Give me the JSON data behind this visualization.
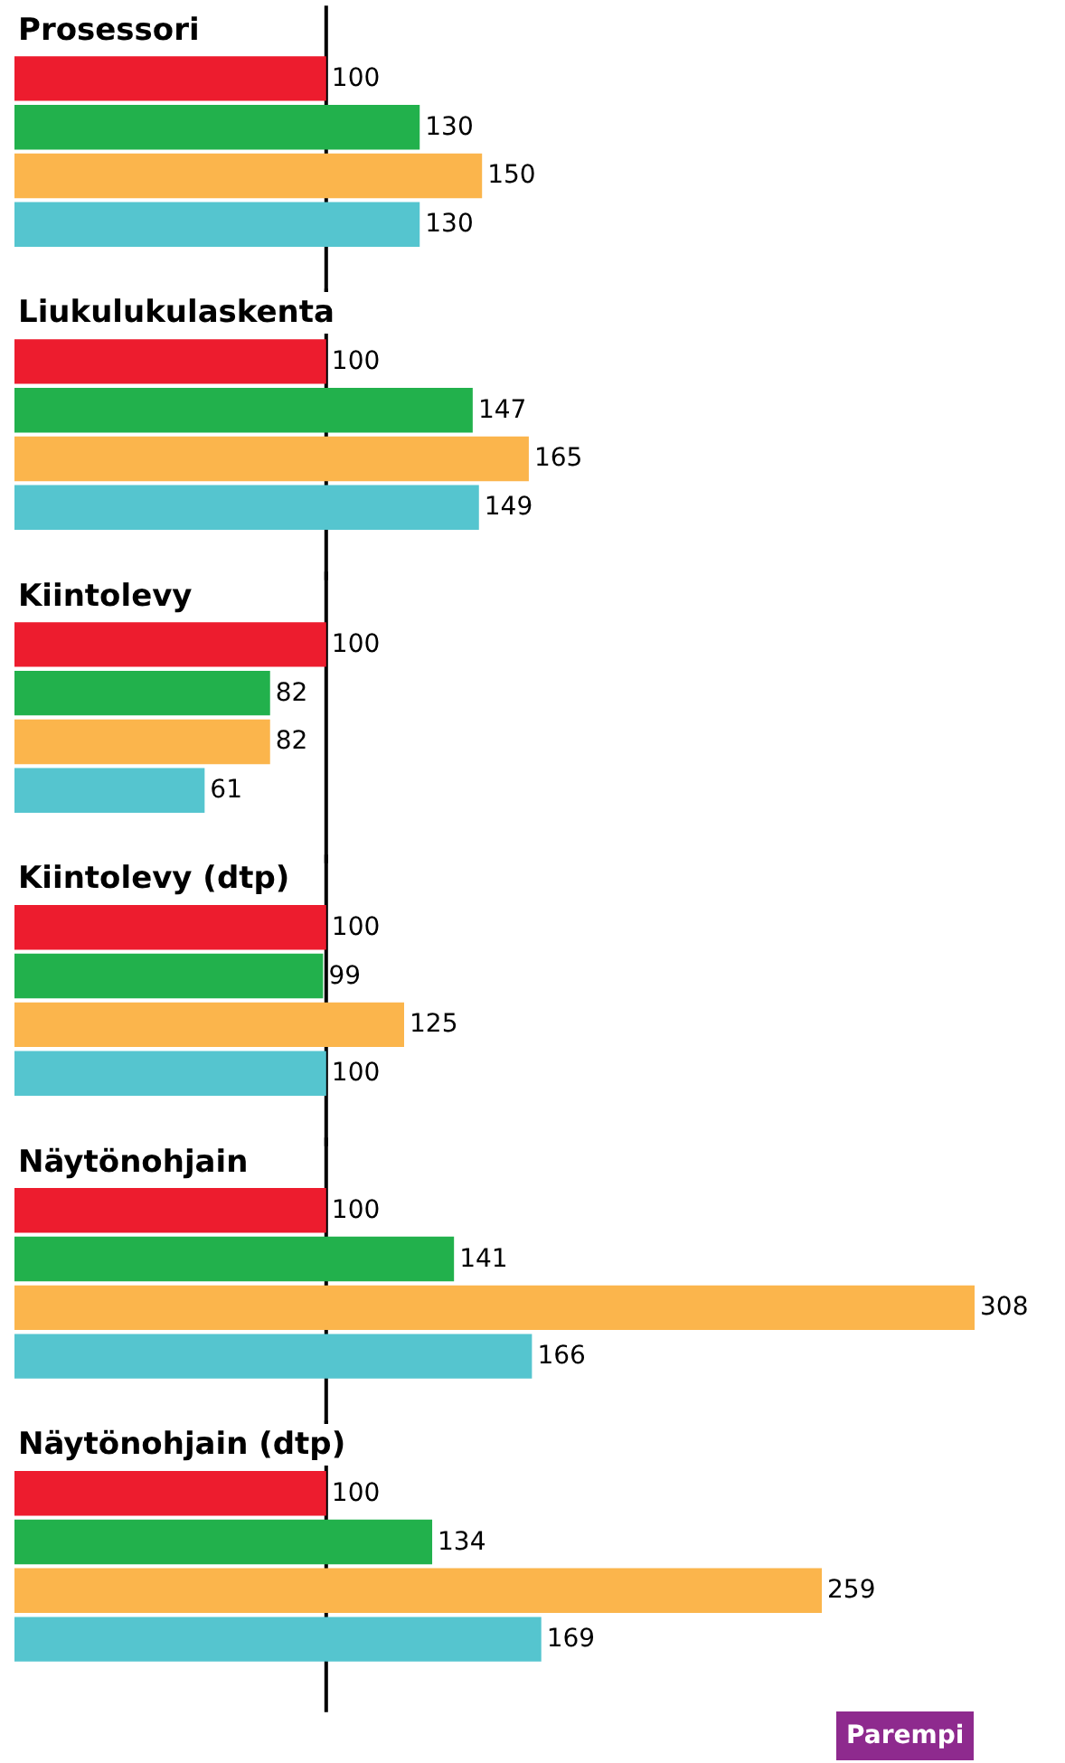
{
  "chart_data": [
    {
      "type": "bar",
      "orientation": "horizontal",
      "title": "Prosessori",
      "categories": [
        null,
        null,
        null,
        null
      ],
      "values": [
        100,
        130,
        150,
        130
      ],
      "colors": [
        "#ed1c2e",
        "#22b14c",
        "#fbb54c",
        "#55c5cf"
      ],
      "data_labels": true,
      "grid": false,
      "tick_labels": false,
      "ref_lines": [
        {
          "axis": "x",
          "value": 100,
          "color": "#000000"
        }
      ]
    },
    {
      "type": "bar",
      "orientation": "horizontal",
      "title": "Liukulukulaskenta",
      "categories": [
        null,
        null,
        null,
        null
      ],
      "values": [
        100,
        147,
        165,
        149
      ],
      "colors": [
        "#ed1c2e",
        "#22b14c",
        "#fbb54c",
        "#55c5cf"
      ],
      "data_labels": true,
      "grid": false,
      "tick_labels": false,
      "ref_lines": [
        {
          "axis": "x",
          "value": 100,
          "color": "#000000"
        }
      ]
    },
    {
      "type": "bar",
      "orientation": "horizontal",
      "title": "Kiintolevy",
      "categories": [
        null,
        null,
        null,
        null
      ],
      "values": [
        100,
        82,
        82,
        61
      ],
      "colors": [
        "#ed1c2e",
        "#22b14c",
        "#fbb54c",
        "#55c5cf"
      ],
      "data_labels": true,
      "grid": false,
      "tick_labels": false,
      "ref_lines": [
        {
          "axis": "x",
          "value": 100,
          "color": "#000000"
        }
      ]
    },
    {
      "type": "bar",
      "orientation": "horizontal",
      "title": "Kiintolevy (dtp)",
      "categories": [
        null,
        null,
        null,
        null
      ],
      "values": [
        100,
        99,
        125,
        100
      ],
      "colors": [
        "#ed1c2e",
        "#22b14c",
        "#fbb54c",
        "#55c5cf"
      ],
      "data_labels": true,
      "grid": false,
      "tick_labels": false,
      "ref_lines": [
        {
          "axis": "x",
          "value": 100,
          "color": "#000000"
        }
      ]
    },
    {
      "type": "bar",
      "orientation": "horizontal",
      "title": "Näytönohjain",
      "categories": [
        null,
        null,
        null,
        null
      ],
      "values": [
        100,
        141,
        308,
        166
      ],
      "colors": [
        "#ed1c2e",
        "#22b14c",
        "#fbb54c",
        "#55c5cf"
      ],
      "data_labels": true,
      "grid": false,
      "tick_labels": false,
      "ref_lines": [
        {
          "axis": "x",
          "value": 100,
          "color": "#000000"
        }
      ]
    },
    {
      "type": "bar",
      "orientation": "horizontal",
      "title": "Näytönohjain (dtp)",
      "categories": [
        null,
        null,
        null,
        null
      ],
      "values": [
        100,
        134,
        259,
        169
      ],
      "colors": [
        "#ed1c2e",
        "#22b14c",
        "#fbb54c",
        "#55c5cf"
      ],
      "data_labels": true,
      "grid": false,
      "tick_labels": false,
      "ref_lines": [
        {
          "axis": "x",
          "value": 100,
          "color": "#000000"
        }
      ],
      "annotations": [
        "Parempi"
      ]
    }
  ]
}
